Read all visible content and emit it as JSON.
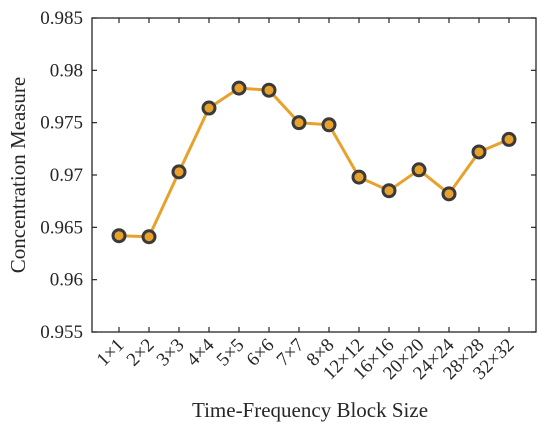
{
  "chart_data": {
    "type": "line",
    "categories": [
      "1×1",
      "2×2",
      "3×3",
      "4×4",
      "5×5",
      "6×6",
      "7×7",
      "8×8",
      "12×12",
      "16×16",
      "20×20",
      "24×24",
      "28×28",
      "32×32"
    ],
    "values": [
      0.9642,
      0.9641,
      0.9703,
      0.9764,
      0.9783,
      0.9781,
      0.975,
      0.9748,
      0.9698,
      0.9685,
      0.9705,
      0.9682,
      0.9722,
      0.9734
    ],
    "xlabel": "Time-Frequency Block Size",
    "ylabel": "Concentration Measure",
    "ylim": [
      0.955,
      0.985
    ],
    "yticks": [
      "0.955",
      "0.96",
      "0.965",
      "0.97",
      "0.975",
      "0.98",
      "0.985"
    ],
    "grid": false,
    "box": true,
    "line_color": "#E8A22C",
    "marker_fill": "#E8A22C",
    "marker_edge": "#3a3a3a",
    "axis_color": "#262626"
  }
}
